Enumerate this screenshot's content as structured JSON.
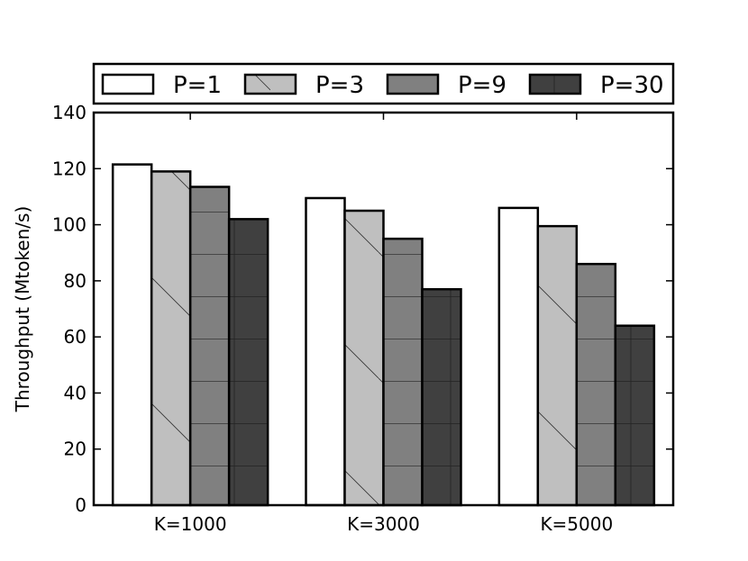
{
  "chart_data": {
    "type": "bar",
    "title": "",
    "xlabel": "",
    "ylabel": "Throughput (Mtoken/s)",
    "ylim": [
      0,
      140
    ],
    "yticks": [
      0,
      20,
      40,
      60,
      80,
      100,
      120,
      140
    ],
    "categories": [
      "K=1000",
      "K=3000",
      "K=5000"
    ],
    "series": [
      {
        "name": "P=1",
        "values": [
          121.5,
          109.5,
          106
        ],
        "color": "#ffffff",
        "pattern": "none"
      },
      {
        "name": "P=3",
        "values": [
          119,
          105,
          99.5
        ],
        "color": "#bfbfbf",
        "pattern": "diagonal"
      },
      {
        "name": "P=9",
        "values": [
          113.5,
          95,
          86
        ],
        "color": "#808080",
        "pattern": "horizontal"
      },
      {
        "name": "P=30",
        "values": [
          102,
          77,
          64
        ],
        "color": "#404040",
        "pattern": "grid"
      }
    ],
    "legend_position": "top",
    "grid": false
  }
}
